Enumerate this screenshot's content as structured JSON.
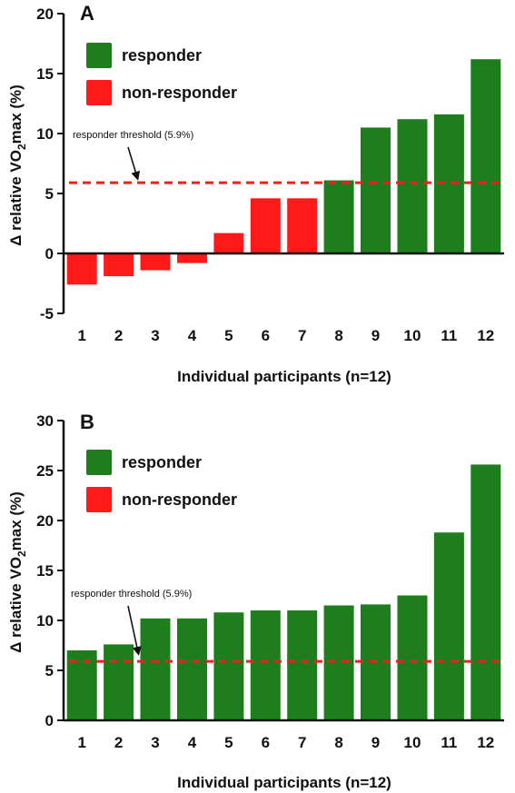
{
  "figure": {
    "panels": [
      {
        "panel_label": "A",
        "legend": {
          "responder": "responder",
          "non_responder": "non-responder"
        },
        "threshold_annotation": "responder threshold (5.9%)",
        "y_axis_label_pre": "Δ relative VO",
        "y_axis_label_sub": "2",
        "y_axis_label_post": "max (%)",
        "x_axis_label": "Individual participants (n=12)"
      },
      {
        "panel_label": "B",
        "legend": {
          "responder": "responder",
          "non_responder": "non-responder"
        },
        "threshold_annotation": "responder threshold (5.9%)",
        "y_axis_label_pre": "Δ relative VO",
        "y_axis_label_sub": "2",
        "y_axis_label_post": "max (%)",
        "x_axis_label": "Individual participants (n=12)"
      }
    ]
  },
  "colors": {
    "responder": "#1e7e1e",
    "non_responder": "#ff1a1a",
    "threshold": "#e8231f"
  },
  "chart_data": [
    {
      "type": "bar",
      "panel": "A",
      "xlabel": "Individual participants (n=12)",
      "ylabel": "Δ relative VO2max (%)",
      "categories": [
        "1",
        "2",
        "3",
        "4",
        "5",
        "6",
        "7",
        "8",
        "9",
        "10",
        "11",
        "12"
      ],
      "values": [
        -2.6,
        -1.9,
        -1.4,
        -0.8,
        1.7,
        4.6,
        4.6,
        6.1,
        10.5,
        11.2,
        11.6,
        16.2
      ],
      "groups": [
        "non-responder",
        "non-responder",
        "non-responder",
        "non-responder",
        "non-responder",
        "non-responder",
        "non-responder",
        "responder",
        "responder",
        "responder",
        "responder",
        "responder"
      ],
      "ylim": [
        -5,
        20
      ],
      "yticks": [
        -5,
        0,
        5,
        10,
        15,
        20
      ],
      "threshold": 5.9,
      "legend_position": "top-left",
      "grid": false
    },
    {
      "type": "bar",
      "panel": "B",
      "xlabel": "Individual participants (n=12)",
      "ylabel": "Δ relative VO2max (%)",
      "categories": [
        "1",
        "2",
        "3",
        "4",
        "5",
        "6",
        "7",
        "8",
        "9",
        "10",
        "11",
        "12"
      ],
      "values": [
        7.0,
        7.6,
        10.2,
        10.2,
        10.8,
        11.0,
        11.0,
        11.5,
        11.6,
        12.5,
        18.8,
        25.6
      ],
      "groups": [
        "responder",
        "responder",
        "responder",
        "responder",
        "responder",
        "responder",
        "responder",
        "responder",
        "responder",
        "responder",
        "responder",
        "responder"
      ],
      "ylim": [
        0,
        30
      ],
      "yticks": [
        0,
        5,
        10,
        15,
        20,
        25,
        30
      ],
      "threshold": 5.9,
      "legend_position": "top-left",
      "grid": false
    }
  ]
}
